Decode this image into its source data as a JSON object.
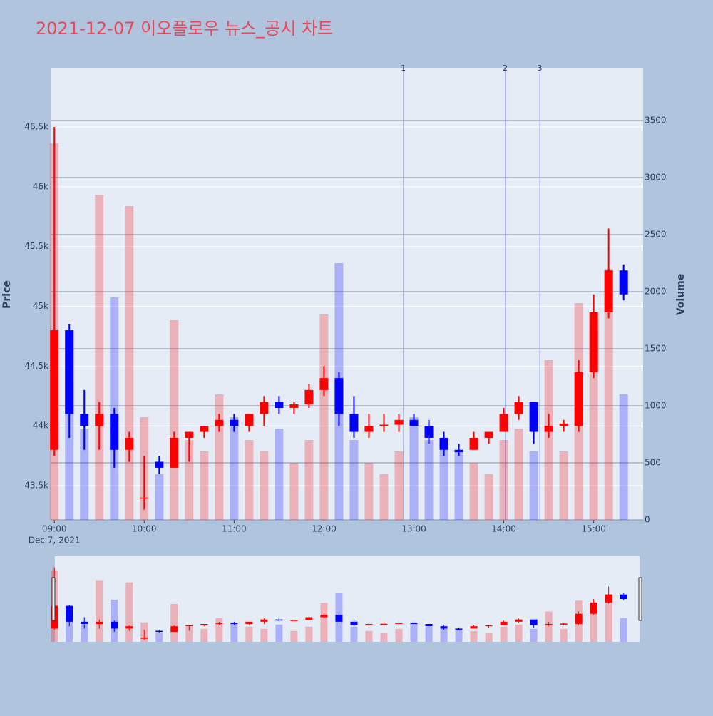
{
  "chart_data": {
    "type": "candlestick",
    "title": "2021-12-07 이오플로우 뉴스_공시 차트",
    "y_label": "Price",
    "y2_label": "Volume",
    "x": [
      "09:00",
      "09:10",
      "09:20",
      "09:30",
      "09:40",
      "09:50",
      "10:00",
      "10:10",
      "10:20",
      "10:30",
      "10:40",
      "10:50",
      "11:00",
      "11:10",
      "11:20",
      "11:30",
      "11:40",
      "11:50",
      "12:00",
      "12:10",
      "12:20",
      "12:30",
      "12:40",
      "12:50",
      "13:00",
      "13:10",
      "13:20",
      "13:30",
      "13:40",
      "13:50",
      "14:00",
      "14:10",
      "14:20",
      "14:30",
      "14:40",
      "14:50",
      "15:00",
      "15:10",
      "15:20"
    ],
    "open": [
      43800,
      44800,
      44100,
      44000,
      44100,
      43800,
      43400,
      43700,
      43650,
      43900,
      43950,
      44000,
      44050,
      44000,
      44100,
      44200,
      44150,
      44180,
      44300,
      44400,
      44100,
      43950,
      44000,
      44010,
      44050,
      44000,
      43900,
      43800,
      43800,
      43900,
      43950,
      44100,
      44200,
      43950,
      44000,
      44000,
      44450,
      44950,
      45300
    ],
    "high": [
      46500,
      44850,
      44300,
      44200,
      44150,
      43950,
      43750,
      43750,
      43950,
      43950,
      44000,
      44100,
      44100,
      44100,
      44250,
      44250,
      44200,
      44350,
      44500,
      44450,
      44250,
      44100,
      44100,
      44100,
      44100,
      44050,
      43950,
      43850,
      43950,
      43950,
      44150,
      44250,
      44200,
      44100,
      44050,
      44550,
      45100,
      45650,
      45350
    ],
    "low": [
      43750,
      43900,
      43800,
      43800,
      43650,
      43700,
      43300,
      43600,
      43650,
      43700,
      43900,
      43950,
      43950,
      43950,
      44000,
      44100,
      44100,
      44150,
      44250,
      44000,
      43900,
      43900,
      43950,
      43950,
      44000,
      43850,
      43750,
      43750,
      43800,
      43850,
      43950,
      44050,
      43850,
      43900,
      43950,
      43950,
      44400,
      44900,
      45050
    ],
    "close": [
      44800,
      44100,
      44000,
      44100,
      43800,
      43900,
      43400,
      43650,
      43900,
      43950,
      44000,
      44050,
      44000,
      44100,
      44200,
      44150,
      44180,
      44300,
      44400,
      44100,
      43950,
      44000,
      44010,
      44050,
      44000,
      43900,
      43800,
      43780,
      43900,
      43950,
      44100,
      44200,
      43950,
      44000,
      44020,
      44450,
      44950,
      45300,
      45100
    ],
    "volume": [
      3300,
      1200,
      800,
      2850,
      1950,
      2750,
      900,
      400,
      1750,
      700,
      600,
      1100,
      900,
      700,
      600,
      800,
      500,
      700,
      1800,
      2250,
      700,
      500,
      400,
      600,
      900,
      700,
      650,
      600,
      500,
      400,
      700,
      800,
      600,
      1400,
      600,
      1900,
      1700,
      2200,
      1100
    ],
    "increasing_color": "#ff0000",
    "decreasing_color": "#0000ff",
    "xlim": [
      "08:58",
      "15:33"
    ],
    "xticks": [
      "09:00",
      "10:00",
      "11:00",
      "12:00",
      "13:00",
      "14:00",
      "15:00"
    ],
    "x_date_label": "Dec 7, 2021",
    "ylim": [
      43214,
      46989
    ],
    "yticks": [
      {
        "value": 43500,
        "label": "43.5k"
      },
      {
        "value": 44000,
        "label": "44k"
      },
      {
        "value": 44500,
        "label": "44.5k"
      },
      {
        "value": 45000,
        "label": "45k"
      },
      {
        "value": 45500,
        "label": "45.5k"
      },
      {
        "value": 46000,
        "label": "46k"
      },
      {
        "value": 46500,
        "label": "46.5k"
      }
    ],
    "y2lim": [
      0,
      3956
    ],
    "y2ticks": [
      0,
      500,
      1000,
      1500,
      2000,
      2500,
      3000,
      3500
    ],
    "annotations": [
      {
        "x": "12:53",
        "text": "1"
      },
      {
        "x": "14:01",
        "text": "2"
      },
      {
        "x": "14:24",
        "text": "3"
      }
    ],
    "rangeslider": true
  }
}
